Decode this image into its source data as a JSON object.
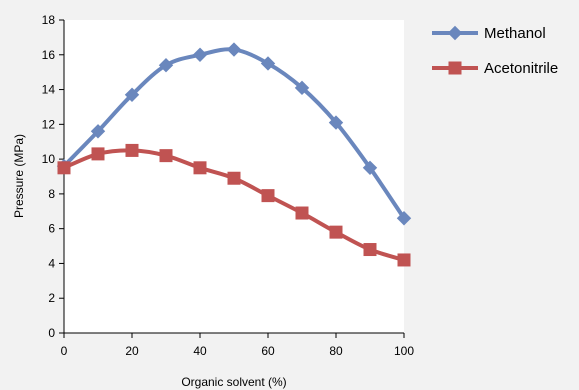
{
  "chart_data": {
    "type": "line",
    "title": "",
    "xlabel": "Organic solvent (%)",
    "ylabel": "Pressure (MPa)",
    "xlim": [
      0,
      100
    ],
    "ylim": [
      0,
      18
    ],
    "x": [
      0,
      10,
      20,
      30,
      40,
      50,
      60,
      70,
      80,
      90,
      100
    ],
    "x_ticks": [
      0,
      20,
      40,
      60,
      80,
      100
    ],
    "y_ticks": [
      0,
      2,
      4,
      6,
      8,
      10,
      12,
      14,
      16,
      18
    ],
    "grid": false,
    "legend_position": "right",
    "series": [
      {
        "name": "Methanol",
        "marker": "diamond",
        "color": "#6a87bd",
        "values": [
          9.6,
          11.6,
          13.7,
          15.4,
          16.0,
          16.3,
          15.5,
          14.1,
          12.1,
          9.5,
          6.6
        ]
      },
      {
        "name": "Acetonitrile",
        "marker": "square",
        "color": "#c05352",
        "values": [
          9.5,
          10.3,
          10.5,
          10.2,
          9.5,
          8.9,
          7.9,
          6.9,
          5.8,
          4.8,
          4.2
        ]
      }
    ]
  }
}
